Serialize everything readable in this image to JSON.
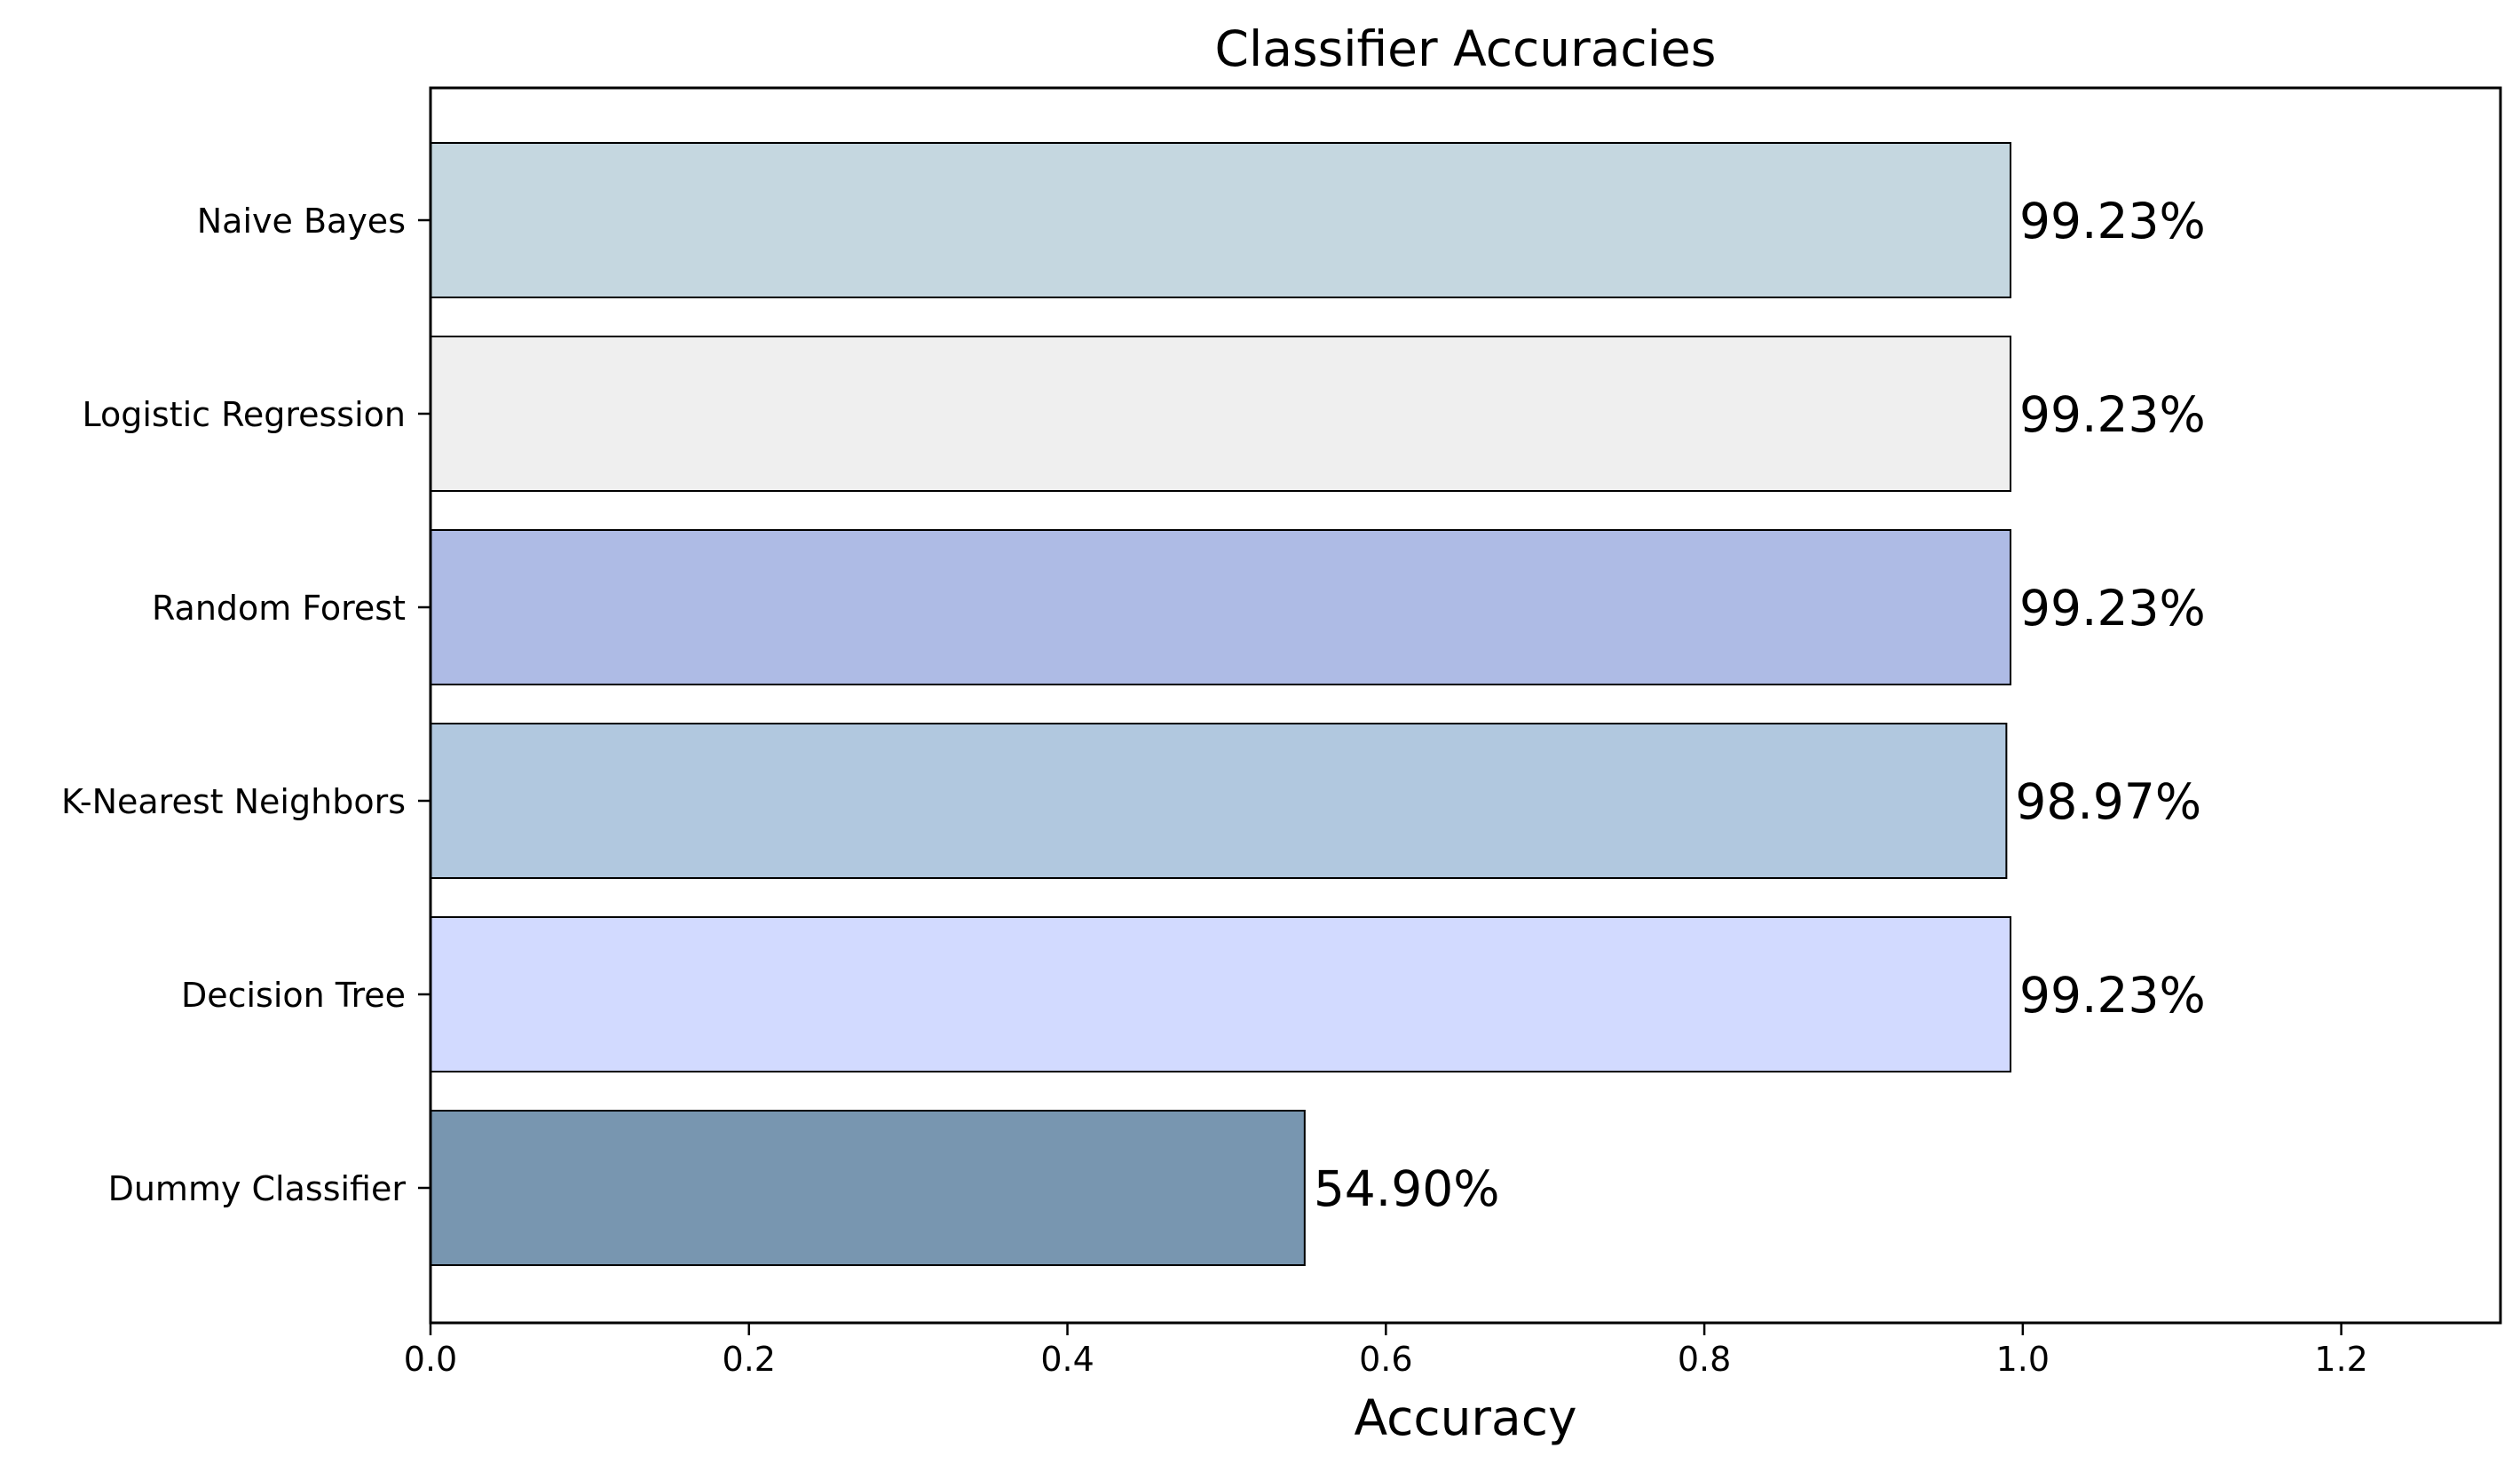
{
  "chart_data": {
    "type": "bar",
    "orientation": "horizontal",
    "title": "Classifier Accuracies",
    "xlabel": "Accuracy",
    "ylabel": "",
    "xlim": [
      0,
      1.3
    ],
    "xticks": [
      0.0,
      0.2,
      0.4,
      0.6,
      0.8,
      1.0,
      1.2
    ],
    "xtick_labels": [
      "0.0",
      "0.2",
      "0.4",
      "0.6",
      "0.8",
      "1.0",
      "1.2"
    ],
    "grid": false,
    "legend": "none",
    "categories": [
      "Dummy Classifier",
      "Decision Tree",
      "K-Nearest Neighbors",
      "Random Forest",
      "Logistic Regression",
      "Naive Bayes"
    ],
    "values": [
      0.549,
      0.9923,
      0.9897,
      0.9923,
      0.9923,
      0.9923
    ],
    "value_labels": [
      "54.90%",
      "99.23%",
      "98.97%",
      "99.23%",
      "99.23%",
      "99.23%"
    ],
    "colors": [
      "#7896b0",
      "#d2daff",
      "#b1c8df",
      "#aebbe5",
      "#efefef",
      "#c5d7e0"
    ],
    "edge_color": "#000000"
  }
}
